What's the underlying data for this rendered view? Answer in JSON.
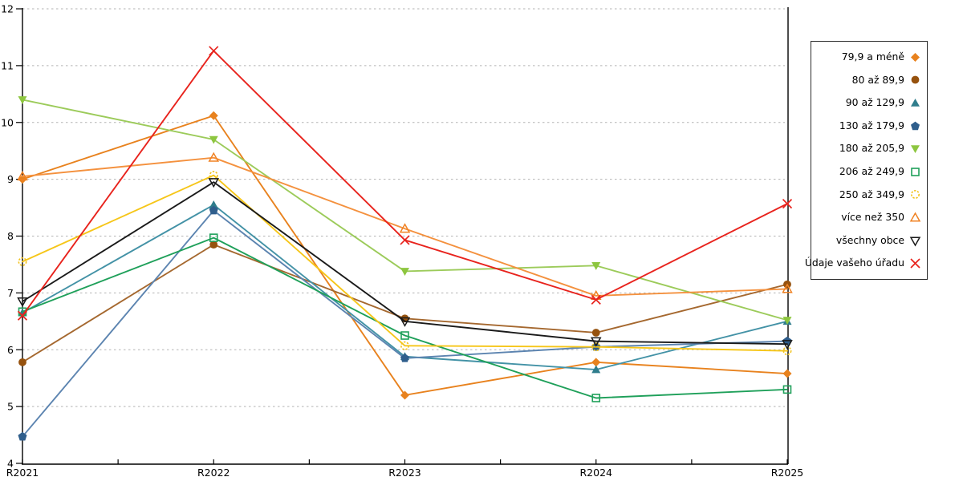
{
  "chart_data": {
    "type": "line",
    "title": "",
    "xlabel": "",
    "ylabel": "",
    "categories": [
      "R2021",
      "R2022",
      "R2023",
      "R2024",
      "R2025"
    ],
    "ylim": [
      4,
      12
    ],
    "yticks": [
      4,
      5,
      6,
      7,
      8,
      9,
      10,
      11,
      12
    ],
    "grid": "horizontal-dotted",
    "legend_position": "right",
    "background": "#FFFFFF",
    "axis_color": "#000000",
    "grid_color": "#B3B3B3",
    "series": [
      {
        "name": "79,9 a méně",
        "marker": "diamond",
        "color": "#E8821E",
        "line_color": "#E8821E",
        "values": [
          9.0,
          10.12,
          5.2,
          5.78,
          5.58
        ]
      },
      {
        "name": "80 až 89,9",
        "marker": "circle",
        "color": "#96520E",
        "line_color": "#A5682F",
        "values": [
          5.78,
          7.85,
          6.55,
          6.3,
          7.15
        ]
      },
      {
        "name": "90 až 129,9",
        "marker": "triangle-up",
        "color": "#2F7D8C",
        "line_color": "#4392A6",
        "values": [
          6.65,
          8.55,
          5.88,
          5.65,
          6.5
        ]
      },
      {
        "name": "130 až 179,9",
        "marker": "pentagon",
        "color": "#2F5E8C",
        "line_color": "#5C84B0",
        "values": [
          4.47,
          8.45,
          5.85,
          6.05,
          6.15
        ]
      },
      {
        "name": "180 až 205,9",
        "marker": "triangle-down",
        "color": "#8DC63F",
        "line_color": "#9CCB5A",
        "values": [
          10.4,
          9.7,
          7.38,
          7.48,
          6.52
        ]
      },
      {
        "name": "206 až 249,9",
        "marker": "square-open",
        "color": "#1FA05A",
        "line_color": "#1FA05A",
        "values": [
          6.67,
          7.97,
          6.25,
          5.15,
          5.3
        ]
      },
      {
        "name": "250 až 349,9",
        "marker": "circle-open",
        "color": "#F2C21C",
        "line_color": "#F6C619",
        "values": [
          7.55,
          9.07,
          6.07,
          6.05,
          5.98
        ]
      },
      {
        "name": "více než 350",
        "marker": "triangle-open",
        "color": "#F08223",
        "line_color": "#F4913E",
        "values": [
          9.05,
          9.38,
          8.13,
          6.95,
          7.07
        ]
      },
      {
        "name": "všechny obce",
        "marker": "triangle-down-open",
        "color": "#1A1A1A",
        "line_color": "#1A1A1A",
        "values": [
          6.85,
          8.95,
          6.5,
          6.15,
          6.1
        ]
      },
      {
        "name": "Údaje vašeho úřadu",
        "marker": "x",
        "color": "#E8231D",
        "line_color": "#E8231D",
        "values": [
          6.6,
          11.26,
          7.93,
          6.88,
          8.57
        ]
      }
    ]
  }
}
